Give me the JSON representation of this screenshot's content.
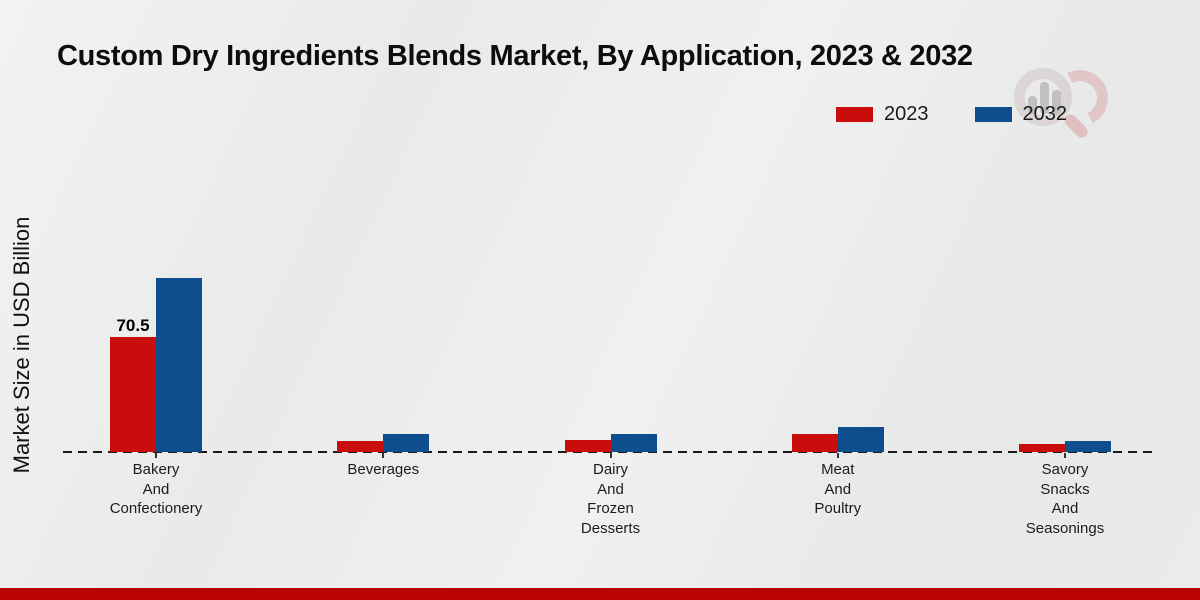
{
  "chart_data": {
    "type": "bar",
    "title": "Custom Dry Ingredients Blends Market, By Application, 2023 & 2032",
    "ylabel": "Market Size in USD Billion",
    "xlabel": "",
    "categories": [
      "Bakery And Confectionery",
      "Beverages",
      "Dairy And Frozen Desserts",
      "Meat And Poultry",
      "Savory Snacks And Seasonings"
    ],
    "category_label_lines": [
      [
        "Bakery",
        "And",
        "Confectionery"
      ],
      [
        "Beverages"
      ],
      [
        "Dairy",
        "And",
        "Frozen",
        "Desserts"
      ],
      [
        "Meat",
        "And",
        "Poultry"
      ],
      [
        "Savory",
        "Snacks",
        "And",
        "Seasonings"
      ]
    ],
    "series": [
      {
        "name": "2023",
        "color": "#c90c0c",
        "values": [
          70.5,
          6.7,
          7.4,
          11.0,
          5.2
        ]
      },
      {
        "name": "2032",
        "color": "#0f4e8c",
        "values": [
          106.7,
          11.0,
          11.0,
          15.3,
          7.0
        ]
      }
    ],
    "bar_value_labels": [
      {
        "series_index": 0,
        "category_index": 0,
        "label": "70.5"
      }
    ],
    "legend_position": "top-right",
    "baseline_style": "dashed",
    "grid": false,
    "ylim": [
      0,
      120
    ]
  },
  "colors": {
    "series_2023": "#c90c0c",
    "series_2032": "#0f4e8c",
    "footer_stripe": "#ba0404",
    "baseline": "#1a1a1a"
  },
  "watermark": {
    "name": "market-research-logo"
  }
}
